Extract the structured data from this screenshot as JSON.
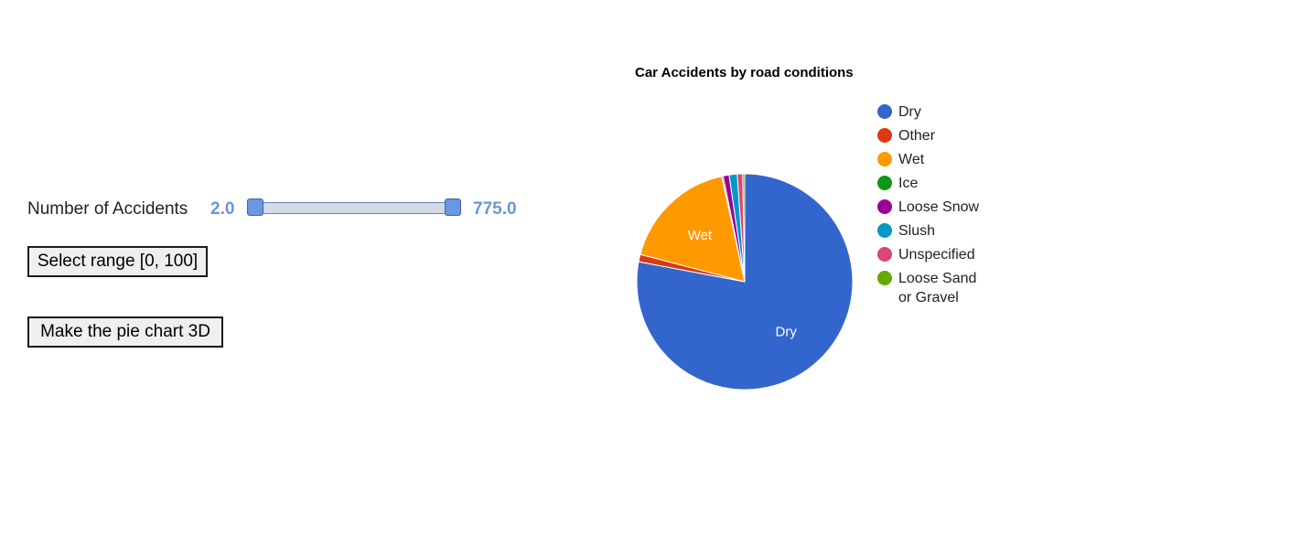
{
  "controls": {
    "range_label": "Number of Accidents",
    "range_min_label": "2.0",
    "range_max_label": "775.0",
    "range_min_value": 2.0,
    "range_max_value": 775.0,
    "range_track_min": 2.0,
    "range_track_max": 775.0,
    "select_range_button": "Select range [0, 100]",
    "make_3d_button": "Make the pie chart 3D",
    "accent_color": "#6b96d6"
  },
  "chart_data": {
    "type": "pie",
    "title": "Car Accidents by road conditions",
    "legend_position": "right",
    "slices": [
      {
        "label": "Dry",
        "value": 775,
        "color": "#3366cc",
        "data_label": "Dry"
      },
      {
        "label": "Other",
        "value": 11,
        "color": "#dc3912",
        "data_label": ""
      },
      {
        "label": "Wet",
        "value": 174,
        "color": "#ff9900",
        "data_label": "Wet"
      },
      {
        "label": "Ice",
        "value": 2,
        "color": "#109618",
        "data_label": ""
      },
      {
        "label": "Loose Snow",
        "value": 9,
        "color": "#990099",
        "data_label": ""
      },
      {
        "label": "Slush",
        "value": 12,
        "color": "#0099c6",
        "data_label": ""
      },
      {
        "label": "Unspecified",
        "value": 8,
        "color": "#dd4477",
        "data_label": ""
      },
      {
        "label": "Loose Sand or Gravel",
        "value": 3,
        "color": "#66aa00",
        "data_label": ""
      }
    ],
    "legend_lines": [
      [
        "Dry"
      ],
      [
        "Other"
      ],
      [
        "Wet"
      ],
      [
        "Ice"
      ],
      [
        "Loose Snow"
      ],
      [
        "Slush"
      ],
      [
        "Unspecified"
      ],
      [
        "Loose Sand",
        "or Gravel"
      ]
    ]
  }
}
